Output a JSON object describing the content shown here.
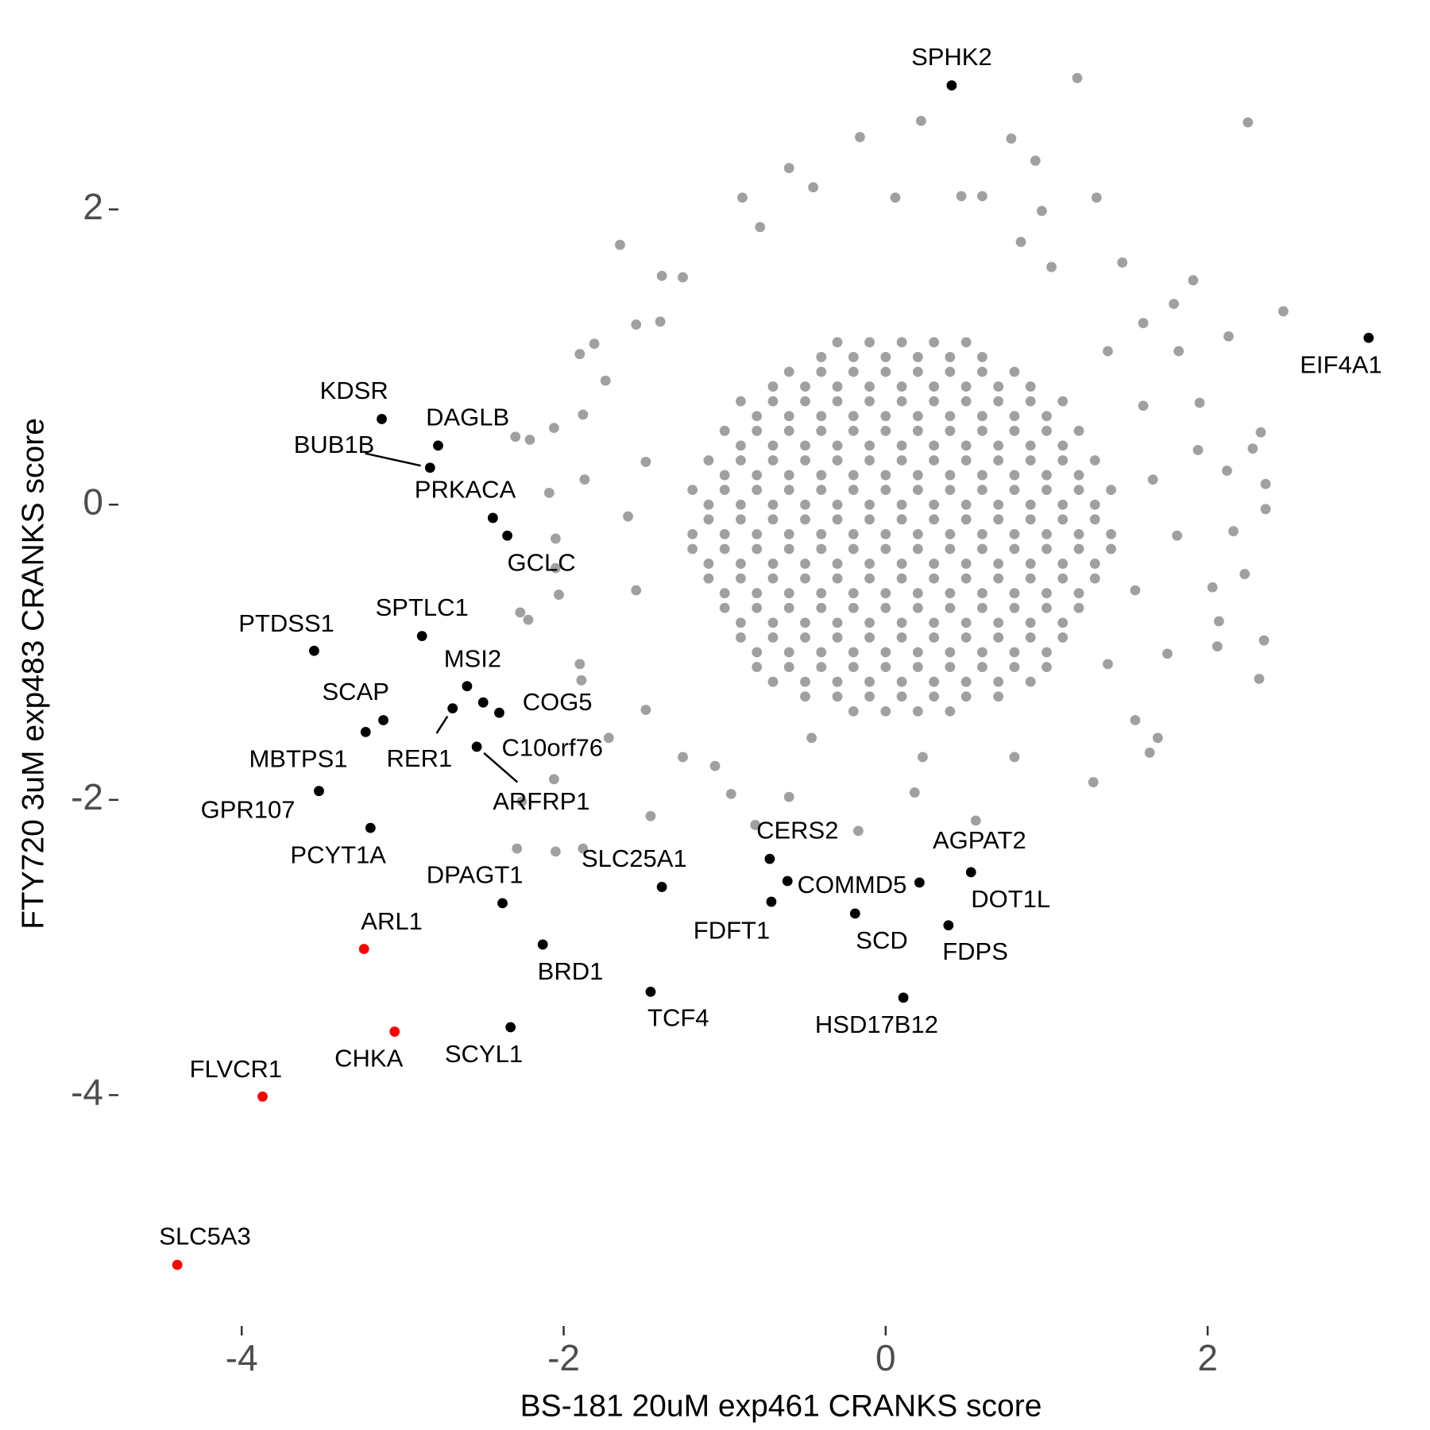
{
  "chart_data": {
    "type": "scatter",
    "x_label": "BS-181 20uM exp461 CRANKS score",
    "y_label": "FTY720 3uM exp483 CRANKS score",
    "xlim": [
      -4.5,
      3.2
    ],
    "ylim": [
      -5.3,
      3.0
    ],
    "xticks": [
      -4,
      -2,
      0,
      2
    ],
    "yticks": [
      -4,
      -2,
      0,
      2
    ],
    "grid": false,
    "series": [
      {
        "color": "#a0a0a0",
        "x": [
          -0.3,
          -0.1,
          0.1,
          0.3,
          0.5,
          -0.6,
          -0.4,
          -0.2,
          0,
          0.2,
          0.4,
          0.6,
          0.8,
          -0.9,
          -0.7,
          -0.5,
          -0.3,
          -0.1,
          0.1,
          0.3,
          0.5,
          0.7,
          0.9,
          1.1,
          -1,
          -0.8,
          -0.6,
          -0.4,
          -0.2,
          0,
          0.2,
          0.4,
          0.6,
          0.8,
          1,
          1.2,
          -1.1,
          -0.9,
          -0.7,
          -0.5,
          -0.3,
          -0.1,
          0.1,
          0.3,
          0.5,
          0.7,
          0.9,
          1.1,
          1.3,
          -1.2,
          -1,
          -0.8,
          -0.6,
          -0.4,
          -0.2,
          0,
          0.2,
          0.4,
          0.6,
          0.8,
          1,
          1.2,
          1.4,
          -1.1,
          -0.9,
          -0.7,
          -0.5,
          -0.3,
          -0.1,
          0.1,
          0.3,
          0.5,
          0.7,
          0.9,
          1.1,
          1.3,
          -1.2,
          -1,
          -0.8,
          -0.6,
          -0.4,
          -0.2,
          0,
          0.2,
          0.4,
          0.6,
          0.8,
          1,
          1.2,
          1.4,
          -1.1,
          -0.9,
          -0.7,
          -0.5,
          -0.3,
          -0.1,
          0.1,
          0.3,
          0.5,
          0.7,
          0.9,
          1.1,
          1.3,
          -1,
          -0.8,
          -0.6,
          -0.4,
          -0.2,
          0,
          0.2,
          0.4,
          0.6,
          0.8,
          1,
          1.2,
          -0.9,
          -0.7,
          -0.5,
          -0.3,
          -0.1,
          0.1,
          0.3,
          0.5,
          0.7,
          0.9,
          1.1,
          -0.8,
          -0.6,
          -0.4,
          -0.2,
          0,
          0.2,
          0.4,
          0.6,
          0.8,
          1,
          -0.5,
          -0.3,
          -0.1,
          0.1,
          0.3,
          0.5,
          0.7
        ],
        "y": [
          1.1,
          1.1,
          1.1,
          1.1,
          1.1,
          0.9,
          0.9,
          0.9,
          0.9,
          0.9,
          0.9,
          0.9,
          0.9,
          0.7,
          0.7,
          0.7,
          0.7,
          0.7,
          0.7,
          0.7,
          0.7,
          0.7,
          0.7,
          0.7,
          0.5,
          0.5,
          0.5,
          0.5,
          0.5,
          0.5,
          0.5,
          0.5,
          0.5,
          0.5,
          0.5,
          0.5,
          0.3,
          0.3,
          0.3,
          0.3,
          0.3,
          0.3,
          0.3,
          0.3,
          0.3,
          0.3,
          0.3,
          0.3,
          0.3,
          0.1,
          0.1,
          0.1,
          0.1,
          0.1,
          0.1,
          0.1,
          0.1,
          0.1,
          0.1,
          0.1,
          0.1,
          0.1,
          0.1,
          -0.1,
          -0.1,
          -0.1,
          -0.1,
          -0.1,
          -0.1,
          -0.1,
          -0.1,
          -0.1,
          -0.1,
          -0.1,
          -0.1,
          -0.1,
          -0.3,
          -0.3,
          -0.3,
          -0.3,
          -0.3,
          -0.3,
          -0.3,
          -0.3,
          -0.3,
          -0.3,
          -0.3,
          -0.3,
          -0.3,
          -0.3,
          -0.5,
          -0.5,
          -0.5,
          -0.5,
          -0.5,
          -0.5,
          -0.5,
          -0.5,
          -0.5,
          -0.5,
          -0.5,
          -0.5,
          -0.5,
          -0.7,
          -0.7,
          -0.7,
          -0.7,
          -0.7,
          -0.7,
          -0.7,
          -0.7,
          -0.7,
          -0.7,
          -0.7,
          -0.7,
          -0.9,
          -0.9,
          -0.9,
          -0.9,
          -0.9,
          -0.9,
          -0.9,
          -0.9,
          -0.9,
          -0.9,
          -0.9,
          -1.1,
          -1.1,
          -1.1,
          -1.1,
          -1.1,
          -1.1,
          -1.1,
          -1.1,
          -1.1,
          -1.1,
          -1.3,
          -1.3,
          -1.3,
          -1.3,
          -1.3,
          -1.3,
          -1.3
        ]
      },
      {
        "color": "#a0a0a0",
        "x": [
          -0.4,
          -0.2,
          0,
          0.2,
          0.4,
          0.6,
          -0.7,
          -0.5,
          -0.3,
          -0.1,
          0.1,
          0.3,
          0.5,
          0.7,
          0.9,
          -0.8,
          -0.6,
          -0.4,
          -0.2,
          0,
          0.2,
          0.4,
          0.6,
          0.8,
          1,
          -0.9,
          -0.7,
          -0.5,
          -0.3,
          -0.1,
          0.1,
          0.3,
          0.5,
          0.7,
          0.9,
          1.1,
          -1,
          -0.8,
          -0.6,
          -0.4,
          -0.2,
          0,
          0.2,
          0.4,
          0.6,
          0.8,
          1,
          1.2,
          -1.1,
          -0.9,
          -0.7,
          -0.5,
          -0.3,
          -0.1,
          0.1,
          0.3,
          0.5,
          0.7,
          0.9,
          1.1,
          1.3,
          -1.2,
          -1,
          -0.8,
          -0.6,
          -0.4,
          -0.2,
          0,
          0.2,
          0.4,
          0.6,
          0.8,
          1,
          1.2,
          1.4,
          -1.1,
          -0.9,
          -0.7,
          -0.5,
          -0.3,
          -0.1,
          0.1,
          0.3,
          0.5,
          0.7,
          0.9,
          1.1,
          1.3,
          -1,
          -0.8,
          -0.6,
          -0.4,
          -0.2,
          0,
          0.2,
          0.4,
          0.6,
          0.8,
          1,
          1.2,
          -0.9,
          -0.7,
          -0.5,
          -0.3,
          -0.1,
          0.1,
          0.3,
          0.5,
          0.7,
          0.9,
          1.1,
          -0.8,
          -0.6,
          -0.4,
          -0.2,
          0,
          0.2,
          0.4,
          0.6,
          0.8,
          1,
          -0.7,
          -0.5,
          -0.3,
          -0.1,
          0.1,
          0.3,
          0.5,
          0.7,
          0.9,
          -0.2,
          0,
          0.2,
          0.4
        ],
        "y": [
          1,
          1,
          1,
          1,
          1,
          1,
          0.8,
          0.8,
          0.8,
          0.8,
          0.8,
          0.8,
          0.8,
          0.8,
          0.8,
          0.6,
          0.6,
          0.6,
          0.6,
          0.6,
          0.6,
          0.6,
          0.6,
          0.6,
          0.6,
          0.4,
          0.4,
          0.4,
          0.4,
          0.4,
          0.4,
          0.4,
          0.4,
          0.4,
          0.4,
          0.4,
          0.2,
          0.2,
          0.2,
          0.2,
          0.2,
          0.2,
          0.2,
          0.2,
          0.2,
          0.2,
          0.2,
          0.2,
          0,
          0,
          0,
          0,
          0,
          0,
          0,
          0,
          0,
          0,
          0,
          0,
          0,
          -0.2,
          -0.2,
          -0.2,
          -0.2,
          -0.2,
          -0.2,
          -0.2,
          -0.2,
          -0.2,
          -0.2,
          -0.2,
          -0.2,
          -0.2,
          -0.2,
          -0.4,
          -0.4,
          -0.4,
          -0.4,
          -0.4,
          -0.4,
          -0.4,
          -0.4,
          -0.4,
          -0.4,
          -0.4,
          -0.4,
          -0.4,
          -0.6,
          -0.6,
          -0.6,
          -0.6,
          -0.6,
          -0.6,
          -0.6,
          -0.6,
          -0.6,
          -0.6,
          -0.6,
          -0.6,
          -0.8,
          -0.8,
          -0.8,
          -0.8,
          -0.8,
          -0.8,
          -0.8,
          -0.8,
          -0.8,
          -0.8,
          -0.8,
          -1,
          -1,
          -1,
          -1,
          -1,
          -1,
          -1,
          -1,
          -1,
          -1,
          -1.2,
          -1.2,
          -1.2,
          -1.2,
          -1.2,
          -1.2,
          -1.2,
          -1.2,
          -1.2,
          -1.4,
          -1.4,
          -1.4,
          -1.4
        ]
      },
      {
        "color": "#a0a0a0",
        "x": [
          1.19,
          2.25,
          0.22,
          -0.16,
          0.78,
          -0.6,
          0.93,
          1.31,
          -0.89,
          -1.65,
          -0.78,
          2.47,
          1.91,
          1.79,
          1.47,
          -1.9,
          -1.81,
          -1.74,
          -1.88,
          -2.06,
          -2.3,
          -2.21,
          -1.87,
          -2.09,
          -2.05,
          -2.05,
          -2.03,
          -2.27,
          -2.22,
          -1.9,
          -1.89,
          -2.06,
          -2.26,
          -2.29,
          -1.88,
          -2.05,
          -1.46,
          -1.06,
          -0.96,
          -0.6,
          -0.81,
          -0.17,
          0.18,
          0.56,
          1.29,
          1.69,
          1.64,
          2.32,
          2.35,
          2.07,
          2.23,
          2.03,
          2.16,
          2.36,
          2.36,
          2.12,
          2.28,
          2.33,
          1.94,
          1.95,
          2.13,
          1.82,
          1.6,
          0.84,
          0.47,
          0.06,
          -0.45,
          0.6,
          0.97,
          -1.39,
          -1.55,
          -1.4,
          1.75,
          1.81,
          2.06,
          1.55,
          -1.49,
          -1.72,
          -1.26,
          -0.46,
          0.8,
          0.23,
          -1.49,
          -1.6,
          -1.55,
          -1.26,
          1.03,
          1.38,
          1.6,
          1.66,
          1.55,
          1.38
        ],
        "y": [
          2.89,
          2.59,
          2.6,
          2.49,
          2.48,
          2.28,
          2.33,
          2.08,
          2.08,
          1.76,
          1.88,
          1.31,
          1.52,
          1.36,
          1.64,
          1.02,
          1.09,
          0.84,
          0.61,
          0.52,
          0.46,
          0.44,
          0.17,
          0.08,
          -0.23,
          -0.43,
          -0.61,
          -0.73,
          -0.78,
          -1.08,
          -1.19,
          -1.86,
          -2.01,
          -2.33,
          -2.33,
          -2.35,
          -2.11,
          -1.77,
          -1.96,
          -1.98,
          -2.17,
          -2.21,
          -1.95,
          -2.14,
          -1.88,
          -1.58,
          -1.68,
          -1.18,
          -0.92,
          -0.79,
          -0.47,
          -0.56,
          -0.18,
          -0.03,
          0.14,
          0.23,
          0.38,
          0.49,
          0.37,
          0.69,
          1.14,
          1.04,
          1.23,
          1.78,
          2.09,
          2.08,
          2.15,
          2.09,
          1.99,
          1.55,
          1.22,
          1.24,
          -1.01,
          -0.21,
          -0.96,
          -1.46,
          -1.39,
          -1.58,
          -1.71,
          -1.58,
          -1.71,
          -1.71,
          0.29,
          -0.08,
          -0.58,
          1.54,
          1.61,
          1.04,
          0.67,
          0.17,
          -0.58,
          -1.08
        ]
      },
      {
        "color": "#000000",
        "labels": [
          "SPHK2",
          "EIF4A1",
          "KDSR",
          "DAGLB",
          "BUB1B",
          "PRKACA",
          "GCLC",
          "SPTLC1",
          "PTDSS1",
          "MSI2",
          "RER1",
          "C10orf76",
          "COG5",
          "ARFRP1",
          "SCAP",
          "MBTPS1",
          "GPR107",
          "PCYT1A",
          "DPAGT1",
          "SLC25A1",
          "CERS2",
          "COMMD5",
          "AGPAT2",
          "DOT1L",
          "FDFT1",
          "SCD",
          "FDPS",
          "BRD1",
          "TCF4",
          "HSD17B12",
          "SCYL1"
        ],
        "x": [
          0.41,
          3.0,
          -3.13,
          -2.78,
          -2.83,
          -2.44,
          -2.35,
          -2.88,
          -3.55,
          -2.6,
          -2.69,
          -2.5,
          -2.4,
          -2.54,
          -3.12,
          -3.23,
          -3.52,
          -3.2,
          -2.38,
          -1.39,
          -0.72,
          -0.61,
          0.21,
          0.53,
          -0.71,
          -0.19,
          0.39,
          -2.13,
          -1.46,
          0.11,
          -2.33
        ],
        "y": [
          2.84,
          1.13,
          0.58,
          0.4,
          0.25,
          -0.09,
          -0.21,
          -0.89,
          -0.99,
          -1.23,
          -1.38,
          -1.34,
          -1.41,
          -1.64,
          -1.46,
          -1.54,
          -1.94,
          -2.19,
          -2.7,
          -2.59,
          -2.4,
          -2.55,
          -2.56,
          -2.49,
          -2.69,
          -2.77,
          -2.85,
          -2.98,
          -3.3,
          -3.34,
          -3.54
        ]
      },
      {
        "color": "#ff0000",
        "labels": [
          "ARL1",
          "CHKA",
          "FLVCR1",
          "SLC5A3"
        ],
        "x": [
          -3.24,
          -3.05,
          -3.87,
          -4.4
        ],
        "y": [
          -3.01,
          -3.57,
          -4.01,
          -5.15
        ]
      }
    ]
  }
}
